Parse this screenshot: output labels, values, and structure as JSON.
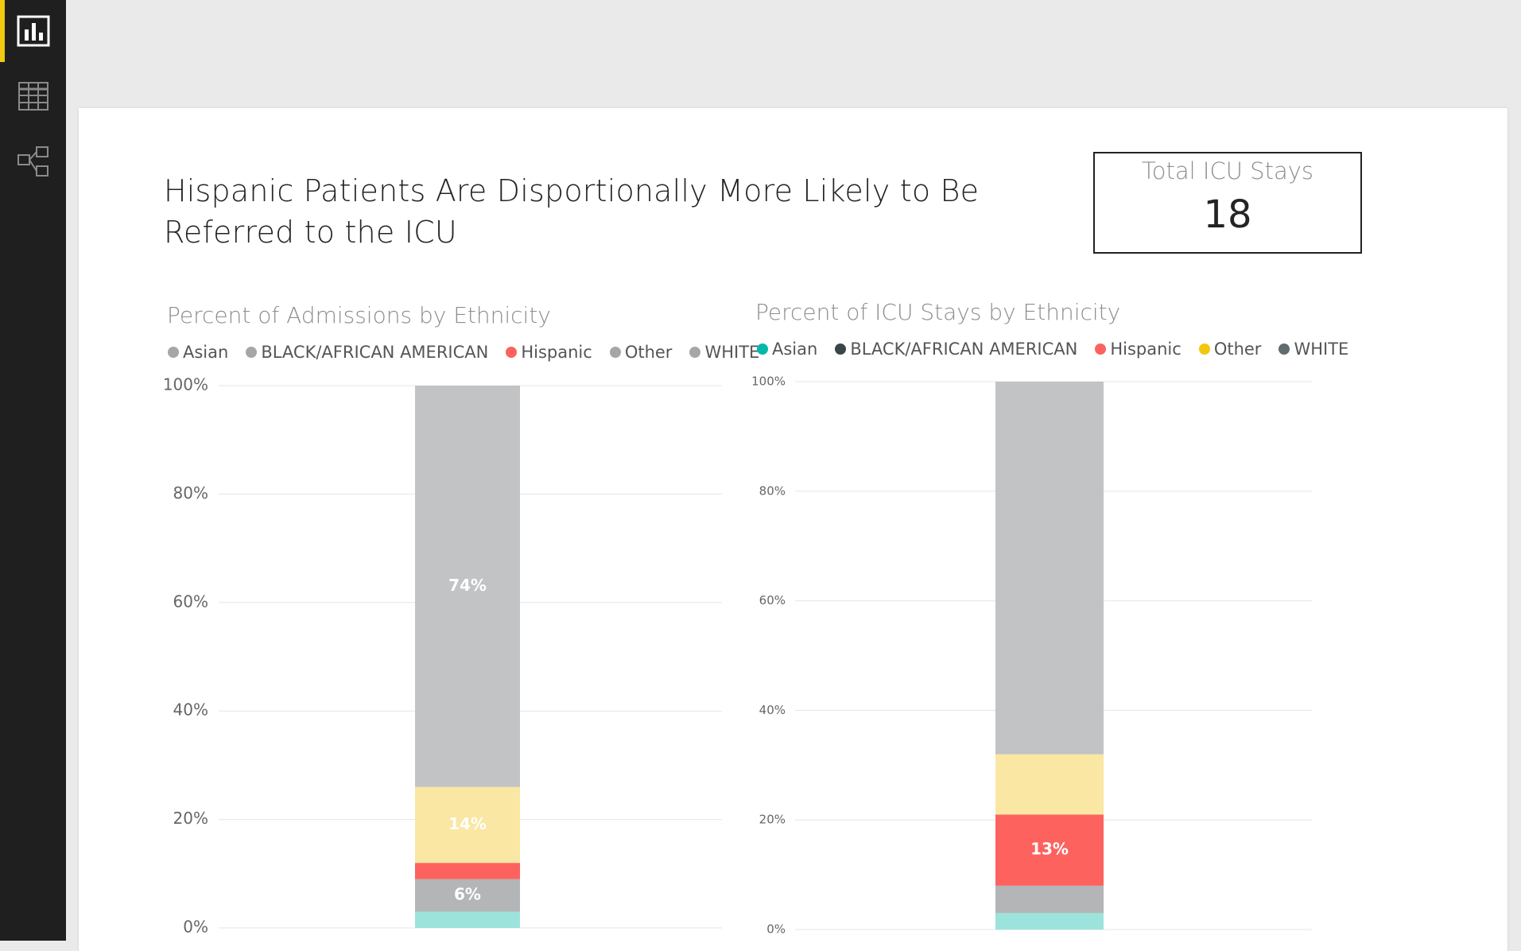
{
  "nav": {
    "items": [
      {
        "name": "report-view",
        "icon": "bar-chart-icon",
        "active": true
      },
      {
        "name": "data-view",
        "icon": "table-grid-icon",
        "active": false
      },
      {
        "name": "model-view",
        "icon": "relationships-icon",
        "active": false
      }
    ],
    "accent_color": "#f2c811"
  },
  "report": {
    "title": "Hispanic Patients Are Disportionally More Likely to Be Referred to the ICU"
  },
  "kpi": {
    "label": "Total ICU Stays",
    "value": "18"
  },
  "charts": {
    "admissions": {
      "title": "Percent of Admissions by Ethnicity",
      "legend": [
        {
          "label": "Asian",
          "color": "#a6a6a6"
        },
        {
          "label": "BLACK/AFRICAN AMERICAN",
          "color": "#a6a6a6"
        },
        {
          "label": "Hispanic",
          "color": "#fd625e"
        },
        {
          "label": "Other",
          "color": "#a6a6a6"
        },
        {
          "label": "WHITE",
          "color": "#a6a6a6"
        }
      ]
    },
    "icu": {
      "title": "Percent of ICU Stays by Ethnicity",
      "legend": [
        {
          "label": "Asian",
          "color": "#01b8aa"
        },
        {
          "label": "BLACK/AFRICAN AMERICAN",
          "color": "#374649"
        },
        {
          "label": "Hispanic",
          "color": "#fd625e"
        },
        {
          "label": "Other",
          "color": "#f2c80f"
        },
        {
          "label": "WHITE",
          "color": "#5f6b6d"
        }
      ]
    }
  },
  "chart_data": [
    {
      "type": "bar",
      "stacked": true,
      "title": "Percent of Admissions by Ethnicity",
      "ylim": [
        0,
        100
      ],
      "y_ticks": [
        "0%",
        "20%",
        "40%",
        "60%",
        "80%",
        "100%"
      ],
      "series": [
        {
          "name": "Asian",
          "value": 3,
          "color": "#9ce3dc",
          "label": ""
        },
        {
          "name": "BLACK/AFRICAN AMERICAN",
          "value": 6,
          "color": "#b3b5b6",
          "label": "6%"
        },
        {
          "name": "Hispanic",
          "value": 3,
          "color": "#fd625e",
          "label": ""
        },
        {
          "name": "Other",
          "value": 14,
          "color": "#f9e7a3",
          "label": "14%"
        },
        {
          "name": "WHITE",
          "value": 74,
          "color": "#c1c3c4",
          "label": "74%"
        }
      ]
    },
    {
      "type": "bar",
      "stacked": true,
      "title": "Percent of ICU Stays by Ethnicity",
      "ylim": [
        0,
        100
      ],
      "y_ticks": [
        "0%",
        "20%",
        "40%",
        "60%",
        "80%",
        "100%"
      ],
      "series": [
        {
          "name": "Asian",
          "value": 3,
          "color": "#9ce3dc",
          "label": ""
        },
        {
          "name": "BLACK/AFRICAN AMERICAN",
          "value": 5,
          "color": "#b3b5b6",
          "label": ""
        },
        {
          "name": "Hispanic",
          "value": 13,
          "color": "#fd625e",
          "label": "13%"
        },
        {
          "name": "Other",
          "value": 11,
          "color": "#f9e7a3",
          "label": ""
        },
        {
          "name": "WHITE",
          "value": 68,
          "color": "#c1c3c4",
          "label": ""
        }
      ]
    }
  ]
}
